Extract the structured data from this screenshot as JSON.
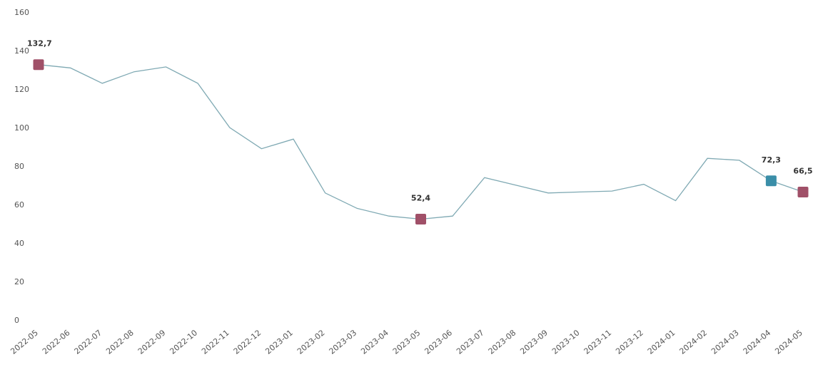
{
  "chart_data": {
    "type": "line",
    "title": "",
    "xlabel": "",
    "ylabel": "",
    "ylim": [
      0,
      160
    ],
    "yticks": [
      0,
      20,
      40,
      60,
      80,
      100,
      120,
      140,
      160
    ],
    "grid": false,
    "legend": "none",
    "categories": [
      "2022-05",
      "2022-06",
      "2022-07",
      "2022-08",
      "2022-09",
      "2022-10",
      "2022-11",
      "2022-12",
      "2023-01",
      "2023-02",
      "2023-03",
      "2023-04",
      "2023-05",
      "2023-06",
      "2023-07",
      "2023-08",
      "2023-09",
      "2023-10",
      "2023-11",
      "2023-12",
      "2024-01",
      "2024-02",
      "2024-03",
      "2024-04",
      "2024-05"
    ],
    "series": [
      {
        "values": [
          132.7,
          131,
          123,
          129,
          131.5,
          123,
          100,
          89,
          94,
          66,
          58,
          54,
          52.4,
          54,
          74,
          70,
          66,
          66.5,
          67,
          70.5,
          62,
          84,
          83,
          72.3,
          66.5
        ],
        "color": "#7fa9b3"
      }
    ],
    "highlights": [
      {
        "index": 0,
        "label": "132,7",
        "color": "#a05068"
      },
      {
        "index": 12,
        "label": "52,4",
        "color": "#a05068"
      },
      {
        "index": 23,
        "label": "72,3",
        "color": "#3a8ea8"
      },
      {
        "index": 24,
        "label": "66,5",
        "color": "#a05068"
      }
    ]
  }
}
